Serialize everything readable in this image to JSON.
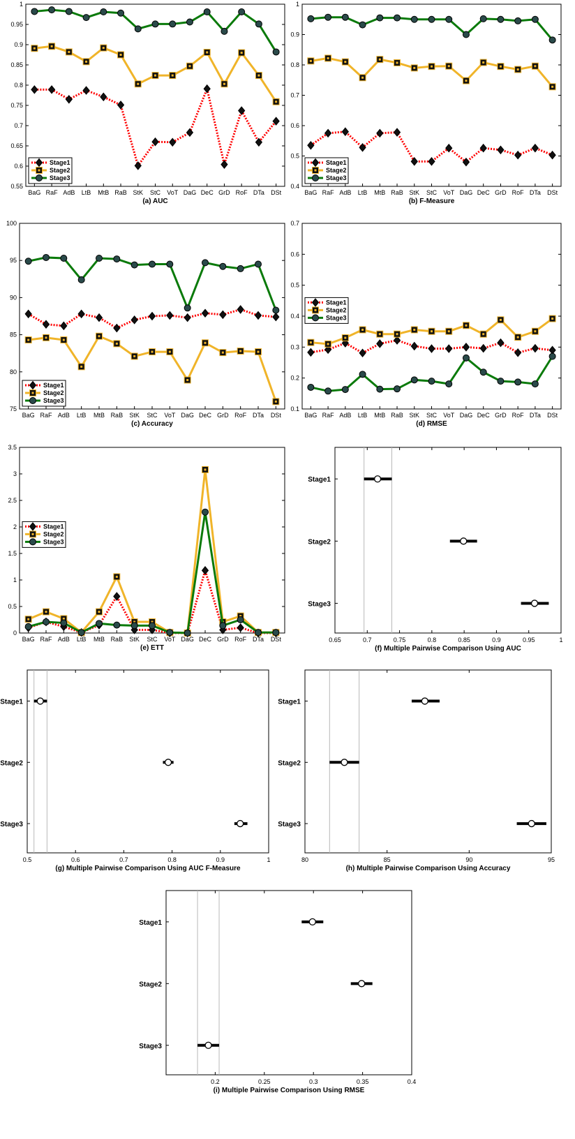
{
  "chart_data": [
    {
      "id": "a",
      "type": "line",
      "title": "(a) AUC",
      "categories": [
        "BaG",
        "RaF",
        "AdB",
        "LtB",
        "MtB",
        "RaB",
        "StK",
        "StC",
        "VoT",
        "DaG",
        "DeC",
        "GrD",
        "RoF",
        "DTa",
        "DSt"
      ],
      "ylim": [
        0.55,
        1
      ],
      "yticks": [
        0.55,
        0.6,
        0.65,
        0.7,
        0.75,
        0.8,
        0.85,
        0.9,
        0.95,
        1
      ],
      "legend_position": "bottom-left",
      "series": [
        {
          "name": "Stage1",
          "color": "#ff0000",
          "marker": "diamond",
          "dash": true,
          "values": [
            0.789,
            0.789,
            0.765,
            0.787,
            0.771,
            0.751,
            0.601,
            0.66,
            0.659,
            0.683,
            0.791,
            0.604,
            0.737,
            0.659,
            0.711
          ]
        },
        {
          "name": "Stage2",
          "color": "#f0b429",
          "marker": "square",
          "dash": false,
          "values": [
            0.891,
            0.896,
            0.882,
            0.858,
            0.892,
            0.875,
            0.803,
            0.824,
            0.824,
            0.847,
            0.881,
            0.803,
            0.88,
            0.824,
            0.759
          ]
        },
        {
          "name": "Stage3",
          "color": "#0a7a0a",
          "marker": "circle",
          "dash": false,
          "values": [
            0.982,
            0.986,
            0.982,
            0.967,
            0.981,
            0.978,
            0.939,
            0.951,
            0.951,
            0.956,
            0.981,
            0.933,
            0.981,
            0.951,
            0.882
          ]
        }
      ]
    },
    {
      "id": "b",
      "type": "line",
      "title": "(b) F-Measure",
      "categories": [
        "BaG",
        "RaF",
        "AdB",
        "LtB",
        "MtB",
        "RaB",
        "StK",
        "StC",
        "VoT",
        "DaG",
        "DeC",
        "GrD",
        "RoF",
        "DTa",
        "DSt"
      ],
      "ylim": [
        0.4,
        1
      ],
      "yticks": [
        0.4,
        0.5,
        0.6,
        0.7,
        0.8,
        0.9,
        1
      ],
      "legend_position": "bottom-left",
      "series": [
        {
          "name": "Stage1",
          "color": "#ff0000",
          "marker": "diamond",
          "dash": true,
          "values": [
            0.535,
            0.575,
            0.58,
            0.528,
            0.575,
            0.578,
            0.482,
            0.482,
            0.526,
            0.48,
            0.526,
            0.52,
            0.503,
            0.526,
            0.503
          ]
        },
        {
          "name": "Stage2",
          "color": "#f0b429",
          "marker": "square",
          "dash": false,
          "values": [
            0.813,
            0.822,
            0.81,
            0.758,
            0.818,
            0.807,
            0.79,
            0.795,
            0.796,
            0.748,
            0.808,
            0.795,
            0.785,
            0.796,
            0.728
          ]
        },
        {
          "name": "Stage3",
          "color": "#0a7a0a",
          "marker": "circle",
          "dash": false,
          "values": [
            0.952,
            0.957,
            0.957,
            0.932,
            0.955,
            0.955,
            0.95,
            0.95,
            0.95,
            0.9,
            0.952,
            0.95,
            0.945,
            0.95,
            0.882
          ]
        }
      ]
    },
    {
      "id": "c",
      "type": "line",
      "title": "(c) Accuracy",
      "categories": [
        "BaG",
        "RaF",
        "AdB",
        "LtB",
        "MtB",
        "RaB",
        "StK",
        "StC",
        "VoT",
        "DaG",
        "DeC",
        "GrD",
        "RoF",
        "DTa",
        "DSt"
      ],
      "ylim": [
        75,
        100
      ],
      "yticks": [
        75,
        80,
        85,
        90,
        95,
        100
      ],
      "legend_position": "bottom-left",
      "series": [
        {
          "name": "Stage1",
          "color": "#ff0000",
          "marker": "diamond",
          "dash": true,
          "values": [
            87.8,
            86.4,
            86.2,
            87.8,
            87.3,
            85.9,
            87.0,
            87.5,
            87.6,
            87.3,
            87.9,
            87.7,
            88.4,
            87.6,
            87.4
          ]
        },
        {
          "name": "Stage2",
          "color": "#f0b429",
          "marker": "square",
          "dash": false,
          "values": [
            84.3,
            84.6,
            84.3,
            80.7,
            84.8,
            83.8,
            82.1,
            82.7,
            82.7,
            78.9,
            83.9,
            82.6,
            82.8,
            82.7,
            76.0
          ]
        },
        {
          "name": "Stage3",
          "color": "#0a7a0a",
          "marker": "circle",
          "dash": false,
          "values": [
            94.9,
            95.4,
            95.3,
            92.4,
            95.3,
            95.2,
            94.4,
            94.5,
            94.5,
            88.6,
            94.7,
            94.2,
            93.9,
            94.5,
            88.3
          ]
        }
      ]
    },
    {
      "id": "d",
      "type": "line",
      "title": "(d) RMSE",
      "categories": [
        "BaG",
        "RaF",
        "AdB",
        "LtB",
        "MtB",
        "RaB",
        "StK",
        "StC",
        "VoT",
        "DaG",
        "DeC",
        "GrD",
        "RoF",
        "DTa",
        "DSt"
      ],
      "ylim": [
        0.1,
        0.7
      ],
      "yticks": [
        0.1,
        0.2,
        0.3,
        0.4,
        0.5,
        0.6,
        0.7
      ],
      "legend_position": "middle-left",
      "series": [
        {
          "name": "Stage1",
          "color": "#ff0000",
          "marker": "diamond",
          "dash": true,
          "values": [
            0.283,
            0.292,
            0.313,
            0.281,
            0.311,
            0.322,
            0.303,
            0.295,
            0.295,
            0.3,
            0.296,
            0.314,
            0.282,
            0.296,
            0.29
          ]
        },
        {
          "name": "Stage2",
          "color": "#f0b429",
          "marker": "square",
          "dash": false,
          "values": [
            0.315,
            0.31,
            0.33,
            0.356,
            0.342,
            0.342,
            0.356,
            0.351,
            0.351,
            0.37,
            0.342,
            0.388,
            0.332,
            0.351,
            0.392
          ]
        },
        {
          "name": "Stage3",
          "color": "#0a7a0a",
          "marker": "circle",
          "dash": false,
          "values": [
            0.17,
            0.158,
            0.163,
            0.212,
            0.164,
            0.165,
            0.194,
            0.19,
            0.181,
            0.265,
            0.219,
            0.19,
            0.187,
            0.181,
            0.27
          ]
        }
      ]
    },
    {
      "id": "e",
      "type": "line",
      "title": "(e) ETT",
      "categories": [
        "BaG",
        "RaF",
        "AdB",
        "LtB",
        "MtB",
        "RaB",
        "StK",
        "StC",
        "VoT",
        "DaG",
        "DeC",
        "GrD",
        "RoF",
        "DTa",
        "DSt"
      ],
      "ylim": [
        0,
        3.5
      ],
      "yticks": [
        0,
        0.5,
        1,
        1.5,
        2,
        2.5,
        3,
        3.5
      ],
      "legend_position": "middle-left",
      "series": [
        {
          "name": "Stage1",
          "color": "#ff0000",
          "marker": "diamond",
          "dash": true,
          "values": [
            0.1,
            0.21,
            0.12,
            0.01,
            0.15,
            0.69,
            0.06,
            0.06,
            0.0,
            0.0,
            1.18,
            0.06,
            0.1,
            0.0,
            0.0
          ]
        },
        {
          "name": "Stage2",
          "color": "#f0b429",
          "marker": "square",
          "dash": false,
          "values": [
            0.26,
            0.4,
            0.27,
            0.01,
            0.4,
            1.06,
            0.21,
            0.21,
            0.01,
            0.0,
            3.08,
            0.21,
            0.32,
            0.01,
            0.01
          ]
        },
        {
          "name": "Stage3",
          "color": "#0a7a0a",
          "marker": "circle",
          "dash": false,
          "values": [
            0.12,
            0.21,
            0.19,
            0.01,
            0.18,
            0.15,
            0.14,
            0.14,
            0.01,
            0.0,
            2.28,
            0.14,
            0.25,
            0.01,
            0.01
          ]
        }
      ]
    },
    {
      "id": "f",
      "type": "scatter",
      "subtype": "multiple-comparison",
      "title": "(f) Multiple Pairwise Comparison Using AUC",
      "xlim": [
        0.65,
        1
      ],
      "xticks": [
        0.65,
        0.7,
        0.75,
        0.8,
        0.85,
        0.9,
        0.95,
        1
      ],
      "groups": [
        {
          "label": "Stage1",
          "mean": 0.716,
          "lo": 0.695,
          "hi": 0.738
        },
        {
          "label": "Stage2",
          "mean": 0.849,
          "lo": 0.828,
          "hi": 0.87
        },
        {
          "label": "Stage3",
          "mean": 0.959,
          "lo": 0.938,
          "hi": 0.981
        }
      ],
      "ref_lines": [
        0.695,
        0.738
      ]
    },
    {
      "id": "g",
      "type": "scatter",
      "subtype": "multiple-comparison",
      "title": "(g) Multiple Pairwise Comparison Using AUC F-Measure",
      "xlim": [
        0.5,
        1
      ],
      "xticks": [
        0.5,
        0.6,
        0.7,
        0.8,
        0.9,
        1
      ],
      "groups": [
        {
          "label": "Stage1",
          "mean": 0.527,
          "lo": 0.514,
          "hi": 0.541
        },
        {
          "label": "Stage2",
          "mean": 0.792,
          "lo": 0.781,
          "hi": 0.803
        },
        {
          "label": "Stage3",
          "mean": 0.941,
          "lo": 0.929,
          "hi": 0.956
        }
      ],
      "ref_lines": [
        0.514,
        0.541
      ]
    },
    {
      "id": "h",
      "type": "scatter",
      "subtype": "multiple-comparison",
      "title": "(h) Multiple Pairwise Comparison Using Accuracy",
      "xlim": [
        80,
        95
      ],
      "xticks": [
        80,
        85,
        90,
        95
      ],
      "groups": [
        {
          "label": "Stage1",
          "mean": 87.3,
          "lo": 86.5,
          "hi": 88.2
        },
        {
          "label": "Stage2",
          "mean": 82.4,
          "lo": 81.5,
          "hi": 83.3
        },
        {
          "label": "Stage3",
          "mean": 93.8,
          "lo": 92.9,
          "hi": 94.7
        }
      ],
      "ref_lines": [
        81.5,
        83.3
      ]
    },
    {
      "id": "i",
      "type": "scatter",
      "subtype": "multiple-comparison",
      "title": "(i) Multiple Pairwise Comparison Using RMSE",
      "xlim": [
        0.15,
        0.4
      ],
      "xticks": [
        0.2,
        0.25,
        0.3,
        0.35,
        0.4
      ],
      "groups": [
        {
          "label": "Stage1",
          "mean": 0.299,
          "lo": 0.288,
          "hi": 0.31
        },
        {
          "label": "Stage2",
          "mean": 0.349,
          "lo": 0.338,
          "hi": 0.36
        },
        {
          "label": "Stage3",
          "mean": 0.193,
          "lo": 0.182,
          "hi": 0.204
        }
      ],
      "ref_lines": [
        0.182,
        0.204
      ]
    }
  ]
}
